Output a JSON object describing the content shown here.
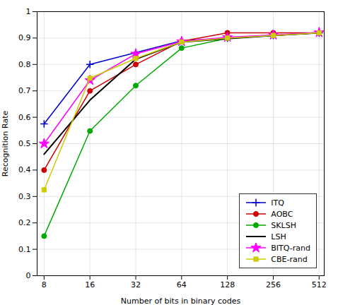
{
  "chart_data": {
    "type": "line",
    "xlabel": "Number of bits in binary codes",
    "ylabel": "Recognition Rate",
    "x": [
      8,
      16,
      32,
      64,
      128,
      256,
      512
    ],
    "series": [
      {
        "name": "ITQ",
        "color": "#0000cc",
        "marker": "plus",
        "values": [
          0.575,
          0.8,
          0.845,
          0.89,
          0.9,
          0.91,
          0.92
        ]
      },
      {
        "name": "AOBC",
        "color": "#cc0000",
        "marker": "circle",
        "values": [
          0.4,
          0.7,
          0.8,
          0.888,
          0.92,
          0.92,
          0.92
        ]
      },
      {
        "name": "SKLSH",
        "color": "#00aa00",
        "marker": "circle",
        "values": [
          0.15,
          0.548,
          0.72,
          0.862,
          0.899,
          0.91,
          0.92
        ]
      },
      {
        "name": "LSH",
        "color": "#000000",
        "marker": "none",
        "values": [
          0.46,
          0.665,
          0.82,
          0.885,
          0.898,
          0.91,
          0.92
        ]
      },
      {
        "name": "BITQ-rand",
        "color": "#ff00ff",
        "marker": "star",
        "values": [
          0.5,
          0.74,
          0.84,
          0.887,
          0.903,
          0.912,
          0.921
        ]
      },
      {
        "name": "CBE-rand",
        "color": "#cccc00",
        "marker": "square",
        "values": [
          0.325,
          0.748,
          0.823,
          0.885,
          0.9,
          0.91,
          0.92
        ]
      }
    ],
    "xlim": [
      7.2,
      552.96
    ],
    "xticks": [
      8,
      16,
      32,
      64,
      128,
      256,
      512
    ],
    "ylim": [
      0,
      1
    ],
    "yticks": [
      0,
      0.1,
      0.2,
      0.3,
      0.4,
      0.5,
      0.6,
      0.7,
      0.8,
      0.9,
      1
    ],
    "log": "x",
    "grid": true,
    "legend": "lower right"
  }
}
